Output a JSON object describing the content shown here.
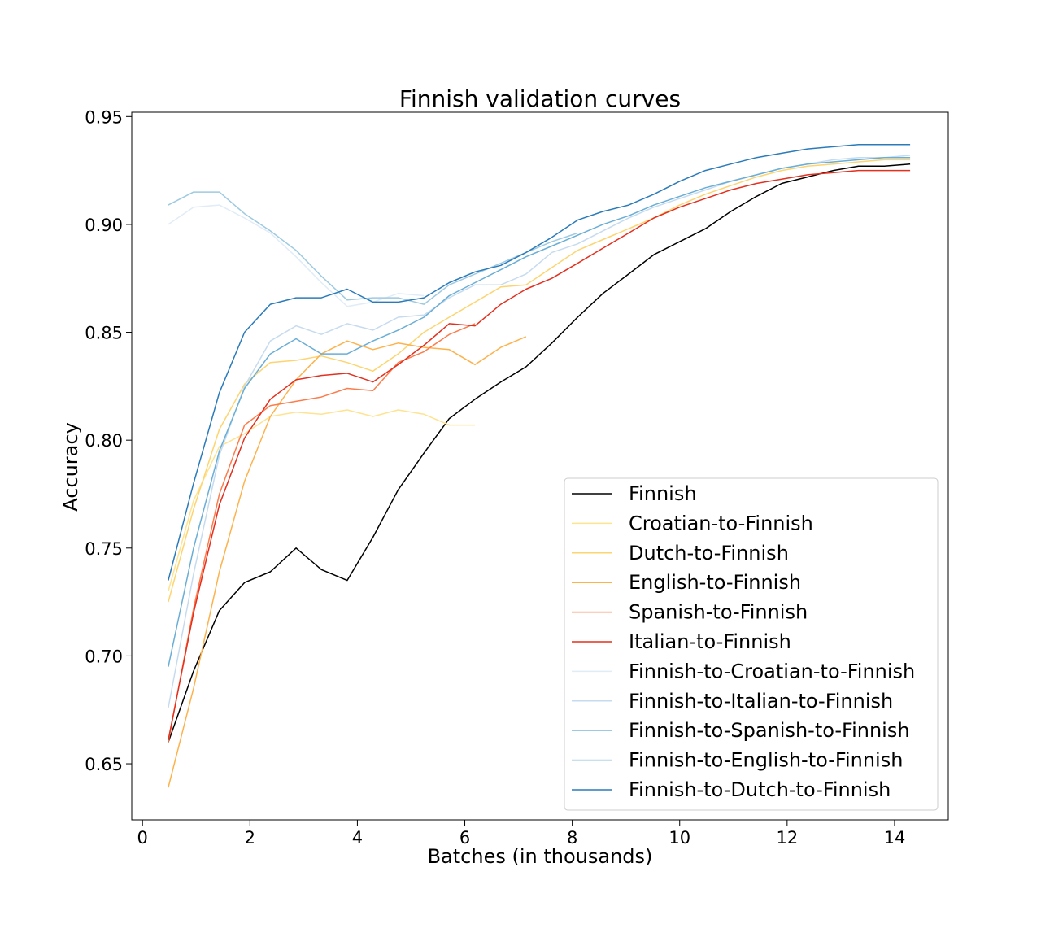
{
  "chart_data": {
    "type": "line",
    "title": "Finnish validation curves",
    "xlabel": "Batches (in thousands)",
    "ylabel": "Accuracy",
    "xlim": [
      -0.2,
      15.0
    ],
    "ylim": [
      0.624,
      0.952
    ],
    "xticks": [
      "0",
      "2",
      "4",
      "6",
      "8",
      "10",
      "12",
      "14"
    ],
    "yticks": [
      "0.65",
      "0.70",
      "0.75",
      "0.80",
      "0.85",
      "0.90",
      "0.95"
    ],
    "grid": false,
    "legend_position": "lower-right",
    "series": [
      {
        "name": "Finnish",
        "color": "#000000",
        "x": [
          0.48,
          0.95,
          1.43,
          1.9,
          2.38,
          2.86,
          3.33,
          3.81,
          4.29,
          4.76,
          5.24,
          5.71,
          6.19,
          6.67,
          7.14,
          7.62,
          8.1,
          8.57,
          9.05,
          9.52,
          10.0,
          10.48,
          10.95,
          11.43,
          11.9,
          12.38,
          12.86,
          13.33,
          13.81,
          14.29
        ],
        "y": [
          0.66,
          0.693,
          0.721,
          0.734,
          0.739,
          0.75,
          0.74,
          0.735,
          0.755,
          0.777,
          0.794,
          0.81,
          0.819,
          0.827,
          0.834,
          0.845,
          0.857,
          0.868,
          0.877,
          0.886,
          0.892,
          0.898,
          0.906,
          0.913,
          0.919,
          0.922,
          0.925,
          0.927,
          0.927,
          0.928
        ]
      },
      {
        "name": "Croatian-to-Finnish",
        "color": "#fee391",
        "x": [
          0.48,
          0.95,
          1.43,
          1.9,
          2.38,
          2.86,
          3.33,
          3.81,
          4.29,
          4.76,
          5.24,
          5.71,
          6.19
        ],
        "y": [
          0.73,
          0.772,
          0.797,
          0.803,
          0.811,
          0.813,
          0.812,
          0.814,
          0.811,
          0.814,
          0.812,
          0.807,
          0.807
        ]
      },
      {
        "name": "Dutch-to-Finnish",
        "color": "#fdd470",
        "x": [
          0.48,
          0.95,
          1.43,
          1.9,
          2.38,
          2.86,
          3.33,
          3.81,
          4.29,
          4.76,
          5.24,
          5.71,
          6.19,
          6.67,
          7.14,
          7.62,
          8.1,
          8.57,
          9.05,
          9.52,
          10.0,
          10.48,
          10.95,
          11.43,
          11.9,
          12.38,
          12.86,
          13.33,
          13.81,
          14.29
        ],
        "y": [
          0.725,
          0.768,
          0.805,
          0.826,
          0.836,
          0.837,
          0.839,
          0.836,
          0.832,
          0.84,
          0.85,
          0.857,
          0.864,
          0.871,
          0.872,
          0.88,
          0.888,
          0.893,
          0.898,
          0.903,
          0.909,
          0.914,
          0.918,
          0.922,
          0.925,
          0.927,
          0.928,
          0.929,
          0.93,
          0.93
        ]
      },
      {
        "name": "English-to-Finnish",
        "color": "#fdb24c",
        "x": [
          0.48,
          0.95,
          1.43,
          1.9,
          2.38,
          2.86,
          3.33,
          3.81,
          4.29,
          4.76,
          5.24,
          5.71,
          6.19,
          6.67,
          7.14
        ],
        "y": [
          0.639,
          0.685,
          0.739,
          0.781,
          0.811,
          0.828,
          0.84,
          0.846,
          0.842,
          0.845,
          0.843,
          0.842,
          0.835,
          0.843,
          0.848
        ]
      },
      {
        "name": "Spanish-to-Finnish",
        "color": "#fc7c4b",
        "x": [
          0.48,
          0.95,
          1.43,
          1.9,
          2.38,
          2.86,
          3.33,
          3.81,
          4.29,
          4.76,
          5.24,
          5.71,
          6.19
        ],
        "y": [
          0.66,
          0.722,
          0.775,
          0.807,
          0.816,
          0.818,
          0.82,
          0.824,
          0.823,
          0.836,
          0.841,
          0.849,
          0.854
        ]
      },
      {
        "name": "Italian-to-Finnish",
        "color": "#e3301f",
        "x": [
          0.48,
          0.95,
          1.43,
          1.9,
          2.38,
          2.86,
          3.33,
          3.81,
          4.29,
          4.76,
          5.24,
          5.71,
          6.19,
          6.67,
          7.14,
          7.62,
          8.1,
          8.57,
          9.05,
          9.52,
          10.0,
          10.48,
          10.95,
          11.43,
          11.9,
          12.38,
          12.86,
          13.33,
          13.81,
          14.29
        ],
        "y": [
          0.661,
          0.72,
          0.77,
          0.801,
          0.819,
          0.828,
          0.83,
          0.831,
          0.827,
          0.835,
          0.844,
          0.854,
          0.853,
          0.863,
          0.87,
          0.875,
          0.882,
          0.889,
          0.896,
          0.903,
          0.908,
          0.912,
          0.916,
          0.919,
          0.921,
          0.923,
          0.924,
          0.925,
          0.925,
          0.925
        ]
      },
      {
        "name": "Finnish-to-Croatian-to-Finnish",
        "color": "#e0ecf8",
        "x": [
          0.48,
          0.95,
          1.43,
          1.9,
          2.38,
          2.86,
          3.33,
          3.81,
          4.29,
          4.76,
          5.24
        ],
        "y": [
          0.9,
          0.908,
          0.909,
          0.903,
          0.896,
          0.885,
          0.873,
          0.862,
          0.864,
          0.868,
          0.867
        ]
      },
      {
        "name": "Finnish-to-Italian-to-Finnish",
        "color": "#c6dbef",
        "x": [
          0.48,
          0.95,
          1.43,
          1.9,
          2.38,
          2.86,
          3.33,
          3.81,
          4.29,
          4.76,
          5.24,
          5.71,
          6.19,
          6.67,
          7.14,
          7.62,
          8.1,
          8.57,
          9.05,
          9.52,
          10.0,
          10.48,
          10.95,
          11.43,
          11.9,
          12.38,
          12.86,
          13.33,
          13.81,
          14.29
        ],
        "y": [
          0.676,
          0.738,
          0.793,
          0.825,
          0.846,
          0.853,
          0.849,
          0.854,
          0.851,
          0.857,
          0.858,
          0.866,
          0.872,
          0.872,
          0.877,
          0.887,
          0.891,
          0.897,
          0.903,
          0.908,
          0.912,
          0.916,
          0.92,
          0.923,
          0.926,
          0.928,
          0.93,
          0.931,
          0.931,
          0.932
        ]
      },
      {
        "name": "Finnish-to-Spanish-to-Finnish",
        "color": "#9ecae1",
        "x": [
          0.48,
          0.95,
          1.43,
          1.9,
          2.38,
          2.86,
          3.33,
          3.81,
          4.29,
          4.76,
          5.24,
          5.71,
          6.19,
          6.67,
          7.14,
          7.62,
          8.1
        ],
        "y": [
          0.909,
          0.915,
          0.915,
          0.905,
          0.897,
          0.888,
          0.876,
          0.865,
          0.866,
          0.866,
          0.863,
          0.872,
          0.877,
          0.882,
          0.887,
          0.892,
          0.896
        ]
      },
      {
        "name": "Finnish-to-English-to-Finnish",
        "color": "#6aaed6",
        "x": [
          0.48,
          0.95,
          1.43,
          1.9,
          2.38,
          2.86,
          3.33,
          3.81,
          4.29,
          4.76,
          5.24,
          5.71,
          6.19,
          6.67,
          7.14,
          7.62,
          8.1,
          8.57,
          9.05,
          9.52,
          10.0,
          10.48,
          10.95,
          11.43,
          11.9,
          12.38,
          12.86,
          13.33,
          13.81,
          14.29
        ],
        "y": [
          0.695,
          0.75,
          0.795,
          0.824,
          0.84,
          0.847,
          0.84,
          0.84,
          0.846,
          0.851,
          0.857,
          0.867,
          0.873,
          0.879,
          0.885,
          0.89,
          0.895,
          0.9,
          0.904,
          0.909,
          0.913,
          0.917,
          0.92,
          0.923,
          0.926,
          0.928,
          0.929,
          0.93,
          0.931,
          0.931
        ]
      },
      {
        "name": "Finnish-to-Dutch-to-Finnish",
        "color": "#2b7bba",
        "x": [
          0.48,
          0.95,
          1.43,
          1.9,
          2.38,
          2.86,
          3.33,
          3.81,
          4.29,
          4.76,
          5.24,
          5.71,
          6.19,
          6.67,
          7.14,
          7.62,
          8.1,
          8.57,
          9.05,
          9.52,
          10.0,
          10.48,
          10.95,
          11.43,
          11.9,
          12.38,
          12.86,
          13.33,
          13.81,
          14.29
        ],
        "y": [
          0.735,
          0.78,
          0.822,
          0.85,
          0.863,
          0.866,
          0.866,
          0.87,
          0.864,
          0.864,
          0.866,
          0.873,
          0.878,
          0.881,
          0.887,
          0.894,
          0.902,
          0.906,
          0.909,
          0.914,
          0.92,
          0.925,
          0.928,
          0.931,
          0.933,
          0.935,
          0.936,
          0.937,
          0.937,
          0.937
        ]
      }
    ]
  }
}
